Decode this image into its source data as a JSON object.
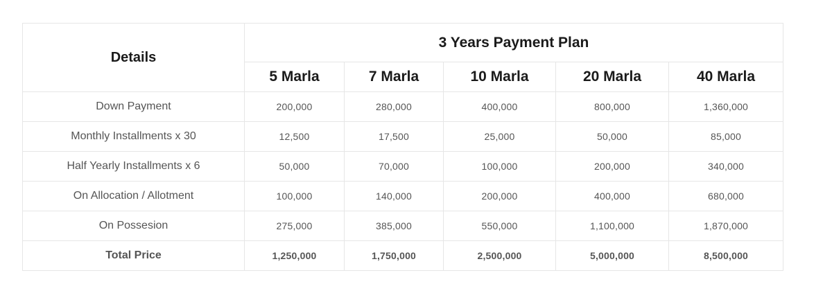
{
  "table": {
    "details_header": "Details",
    "plan_header": "3 Years Payment Plan",
    "sizes": [
      "5 Marla",
      "7 Marla",
      "10 Marla",
      "20 Marla",
      "40 Marla"
    ],
    "rows": [
      {
        "label": "Down Payment",
        "values": [
          "200,000",
          "280,000",
          "400,000",
          "800,000",
          "1,360,000"
        ]
      },
      {
        "label": "Monthly Installments x 30",
        "values": [
          "12,500",
          "17,500",
          "25,000",
          "50,000",
          "85,000"
        ]
      },
      {
        "label": "Half Yearly Installments x 6",
        "values": [
          "50,000",
          "70,000",
          "100,000",
          "200,000",
          "340,000"
        ]
      },
      {
        "label": "On Allocation / Allotment",
        "values": [
          "100,000",
          "140,000",
          "200,000",
          "400,000",
          "680,000"
        ]
      },
      {
        "label": "On Possesion",
        "values": [
          "275,000",
          "385,000",
          "550,000",
          "1,100,000",
          "1,870,000"
        ]
      },
      {
        "label": "Total Price",
        "values": [
          "1,250,000",
          "1,750,000",
          "2,500,000",
          "5,000,000",
          "8,500,000"
        ]
      }
    ]
  }
}
